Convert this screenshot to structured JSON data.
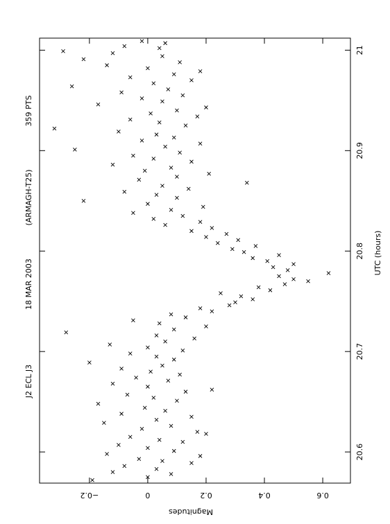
{
  "chart_data": {
    "type": "scatter",
    "annotations": [
      "J2 ECL J3",
      "18 MAR 2003",
      "(ARMAGH-T25)",
      "359 PTS"
    ],
    "x_label": "UTC (hours)",
    "y_label": "Magnitudes",
    "xlim": [
      20.569,
      21.012
    ],
    "ylim": [
      -0.371,
      0.695
    ],
    "xticks": [
      20.6,
      20.7,
      20.8,
      20.9,
      {
        "value": 21,
        "label": "21"
      }
    ],
    "yticks": [
      {
        "value": -0.2,
        "label": "−0.2"
      },
      0,
      0.2,
      0.4,
      0.6
    ],
    "y_inverted": true,
    "color": "#000000",
    "x": [
      20.572,
      20.575,
      20.578,
      20.58,
      20.583,
      20.586,
      20.589,
      20.591,
      20.593,
      20.596,
      20.598,
      20.601,
      20.604,
      20.607,
      20.61,
      20.612,
      20.615,
      20.618,
      20.62,
      20.623,
      20.626,
      20.629,
      20.632,
      20.635,
      20.638,
      20.641,
      20.644,
      20.648,
      20.651,
      20.654,
      20.657,
      20.66,
      20.662,
      20.665,
      20.668,
      20.671,
      20.674,
      20.677,
      20.68,
      20.683,
      20.686,
      20.689,
      20.692,
      20.695,
      20.698,
      20.701,
      20.704,
      20.707,
      20.71,
      20.713,
      20.716,
      20.719,
      20.722,
      20.725,
      20.728,
      20.731,
      20.734,
      20.737,
      20.74,
      20.743,
      20.746,
      20.749,
      20.752,
      20.755,
      20.758,
      20.761,
      20.764,
      20.767,
      20.77,
      20.772,
      20.775,
      20.778,
      20.781,
      20.784,
      20.787,
      20.79,
      20.793,
      20.796,
      20.799,
      20.802,
      20.805,
      20.808,
      20.811,
      20.814,
      20.817,
      20.82,
      20.823,
      20.826,
      20.829,
      20.832,
      20.835,
      20.838,
      20.841,
      20.844,
      20.847,
      20.85,
      20.853,
      20.856,
      20.859,
      20.862,
      20.865,
      20.868,
      20.871,
      20.874,
      20.877,
      20.88,
      20.883,
      20.886,
      20.889,
      20.892,
      20.895,
      20.898,
      20.901,
      20.904,
      20.907,
      20.91,
      20.913,
      20.916,
      20.919,
      20.922,
      20.925,
      20.928,
      20.931,
      20.934,
      20.937,
      20.94,
      20.943,
      20.946,
      20.949,
      20.952,
      20.955,
      20.958,
      20.961,
      20.964,
      20.967,
      20.97,
      20.973,
      20.976,
      20.979,
      20.982,
      20.985,
      20.988,
      20.991,
      20.994,
      20.997,
      20.999,
      21.002,
      21.004,
      21.007,
      21.009
    ],
    "y": [
      -0.19,
      0.0,
      0.08,
      -0.12,
      0.03,
      -0.08,
      0.15,
      0.05,
      -0.03,
      0.18,
      -0.14,
      0.09,
      0.0,
      -0.1,
      0.12,
      0.04,
      -0.06,
      0.2,
      0.17,
      -0.02,
      0.08,
      -0.15,
      0.03,
      0.15,
      -0.09,
      0.06,
      -0.01,
      -0.17,
      0.1,
      0.02,
      -0.07,
      0.13,
      0.22,
      0.0,
      -0.12,
      0.07,
      -0.04,
      0.11,
      0.01,
      -0.09,
      0.05,
      -0.2,
      0.09,
      0.03,
      -0.06,
      0.12,
      0.0,
      -0.13,
      0.06,
      0.16,
      0.03,
      -0.28,
      0.09,
      0.2,
      0.04,
      -0.05,
      0.13,
      0.08,
      0.22,
      0.18,
      0.28,
      0.3,
      0.36,
      0.32,
      0.25,
      0.42,
      0.38,
      0.47,
      0.55,
      0.5,
      0.45,
      0.62,
      0.48,
      0.43,
      0.5,
      0.41,
      0.36,
      0.45,
      0.33,
      0.29,
      0.37,
      0.24,
      0.31,
      0.2,
      0.27,
      0.15,
      0.22,
      0.06,
      0.18,
      0.02,
      0.12,
      -0.05,
      0.08,
      0.19,
      0.0,
      -0.22,
      0.1,
      0.03,
      -0.08,
      0.14,
      0.05,
      0.34,
      -0.03,
      0.1,
      0.21,
      -0.01,
      0.08,
      -0.12,
      0.15,
      0.02,
      -0.05,
      0.11,
      -0.25,
      0.06,
      0.18,
      -0.02,
      0.09,
      0.03,
      -0.1,
      -0.32,
      0.13,
      0.04,
      -0.06,
      0.17,
      0.01,
      0.1,
      0.2,
      -0.17,
      0.05,
      -0.02,
      0.12,
      -0.09,
      0.07,
      -0.26,
      0.02,
      0.15,
      -0.06,
      0.09,
      0.18,
      0.0,
      -0.14,
      0.11,
      -0.22,
      0.05,
      -0.12,
      -0.29,
      0.04,
      -0.08,
      0.06,
      -0.02
    ]
  }
}
